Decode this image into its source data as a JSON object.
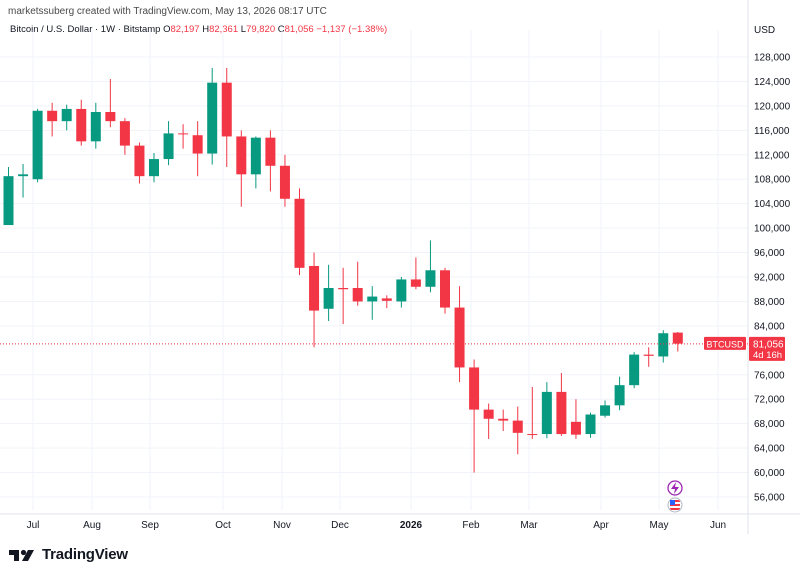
{
  "header": {
    "published_by": "marketssuberg created with TradingView.com, May 13, 2026 08:17 UTC"
  },
  "symbol": {
    "name": "Bitcoin / U.S. Dollar · 1W · Bitstamp",
    "o_label": "O",
    "o_value": "82,197",
    "h_label": "H",
    "h_value": "82,361",
    "l_label": "L",
    "l_value": "79,820",
    "c_label": "C",
    "c_value": "81,056",
    "change": "−1,137 (−1.38%)"
  },
  "price_axis": {
    "currency": "USD",
    "ticks": [
      "128,000",
      "124,000",
      "120,000",
      "116,000",
      "112,000",
      "108,000",
      "104,000",
      "100,000",
      "96,000",
      "92,000",
      "88,000",
      "84,000",
      "76,000",
      "72,000",
      "68,000",
      "64,000",
      "60,000",
      "56,000"
    ]
  },
  "price_tag": {
    "symbol": "BTCUSD",
    "price": "81,056",
    "countdown": "4d 16h",
    "color": "#f23645"
  },
  "colors": {
    "up": "#089981",
    "down": "#f23645",
    "grid": "#f0f3fa"
  },
  "icons": [
    "lightning-flash-icon",
    "us-flag-icon"
  ],
  "logo": {
    "text": "TradingView"
  },
  "chart_data": {
    "type": "candlestick",
    "title": "Bitcoin / U.S. Dollar · 1W · Bitstamp",
    "x_tick_labels": [
      "Jul",
      "Aug",
      "Sep",
      "Oct",
      "Nov",
      "Dec",
      "2026",
      "Feb",
      "Mar",
      "Apr",
      "May",
      "Jun"
    ],
    "y_range": [
      53000,
      131000
    ],
    "last_price": 81056,
    "candles": [
      {
        "o": 100500,
        "h": 110000,
        "l": 100500,
        "c": 108500
      },
      {
        "o": 108500,
        "h": 110500,
        "l": 105000,
        "c": 108800
      },
      {
        "o": 108000,
        "h": 119500,
        "l": 107500,
        "c": 119200
      },
      {
        "o": 119200,
        "h": 120500,
        "l": 115000,
        "c": 117500
      },
      {
        "o": 117500,
        "h": 120200,
        "l": 116000,
        "c": 119500
      },
      {
        "o": 119500,
        "h": 121000,
        "l": 113500,
        "c": 114200
      },
      {
        "o": 114200,
        "h": 120500,
        "l": 113000,
        "c": 119000
      },
      {
        "o": 119000,
        "h": 124400,
        "l": 116500,
        "c": 117500
      },
      {
        "o": 117500,
        "h": 118000,
        "l": 112000,
        "c": 113500
      },
      {
        "o": 113500,
        "h": 114000,
        "l": 107300,
        "c": 108500
      },
      {
        "o": 108500,
        "h": 112300,
        "l": 107500,
        "c": 111300
      },
      {
        "o": 111300,
        "h": 117500,
        "l": 110300,
        "c": 115500
      },
      {
        "o": 115500,
        "h": 117000,
        "l": 113000,
        "c": 115400
      },
      {
        "o": 115200,
        "h": 117500,
        "l": 108500,
        "c": 112200
      },
      {
        "o": 112200,
        "h": 126200,
        "l": 110400,
        "c": 123800
      },
      {
        "o": 123800,
        "h": 126200,
        "l": 110000,
        "c": 115000
      },
      {
        "o": 115000,
        "h": 116000,
        "l": 103500,
        "c": 108800
      },
      {
        "o": 108800,
        "h": 115000,
        "l": 106500,
        "c": 114800
      },
      {
        "o": 114800,
        "h": 116000,
        "l": 106000,
        "c": 110200
      },
      {
        "o": 110200,
        "h": 112000,
        "l": 103500,
        "c": 104800
      },
      {
        "o": 104800,
        "h": 106500,
        "l": 92300,
        "c": 93500
      },
      {
        "o": 93800,
        "h": 96000,
        "l": 80500,
        "c": 86500
      },
      {
        "o": 86800,
        "h": 94000,
        "l": 84800,
        "c": 90200
      },
      {
        "o": 90200,
        "h": 93500,
        "l": 84300,
        "c": 90000
      },
      {
        "o": 90200,
        "h": 94500,
        "l": 87300,
        "c": 88000
      },
      {
        "o": 88000,
        "h": 90500,
        "l": 85000,
        "c": 88800
      },
      {
        "o": 88500,
        "h": 89000,
        "l": 86900,
        "c": 88100
      },
      {
        "o": 88000,
        "h": 92000,
        "l": 87000,
        "c": 91600
      },
      {
        "o": 91600,
        "h": 95200,
        "l": 90000,
        "c": 90400
      },
      {
        "o": 90400,
        "h": 98000,
        "l": 89500,
        "c": 93100
      },
      {
        "o": 93100,
        "h": 93500,
        "l": 86000,
        "c": 87000
      },
      {
        "o": 87000,
        "h": 90500,
        "l": 74800,
        "c": 77200
      },
      {
        "o": 77200,
        "h": 78500,
        "l": 60000,
        "c": 70300
      },
      {
        "o": 70300,
        "h": 71300,
        "l": 65500,
        "c": 68800
      },
      {
        "o": 68800,
        "h": 70300,
        "l": 66800,
        "c": 68500
      },
      {
        "o": 68500,
        "h": 70800,
        "l": 63000,
        "c": 66500
      },
      {
        "o": 66300,
        "h": 74000,
        "l": 65500,
        "c": 66200
      },
      {
        "o": 66300,
        "h": 74800,
        "l": 65600,
        "c": 73200
      },
      {
        "o": 73200,
        "h": 76300,
        "l": 66000,
        "c": 66300
      },
      {
        "o": 68300,
        "h": 72000,
        "l": 65500,
        "c": 66200
      },
      {
        "o": 66300,
        "h": 69800,
        "l": 65700,
        "c": 69500
      },
      {
        "o": 69300,
        "h": 71800,
        "l": 69000,
        "c": 71000
      },
      {
        "o": 71000,
        "h": 75700,
        "l": 70200,
        "c": 74300
      },
      {
        "o": 74300,
        "h": 79700,
        "l": 73800,
        "c": 79300
      },
      {
        "o": 79300,
        "h": 80500,
        "l": 77300,
        "c": 79100
      },
      {
        "o": 79000,
        "h": 83300,
        "l": 78000,
        "c": 82800
      },
      {
        "o": 82900,
        "h": 83000,
        "l": 79800,
        "c": 81100
      }
    ]
  }
}
